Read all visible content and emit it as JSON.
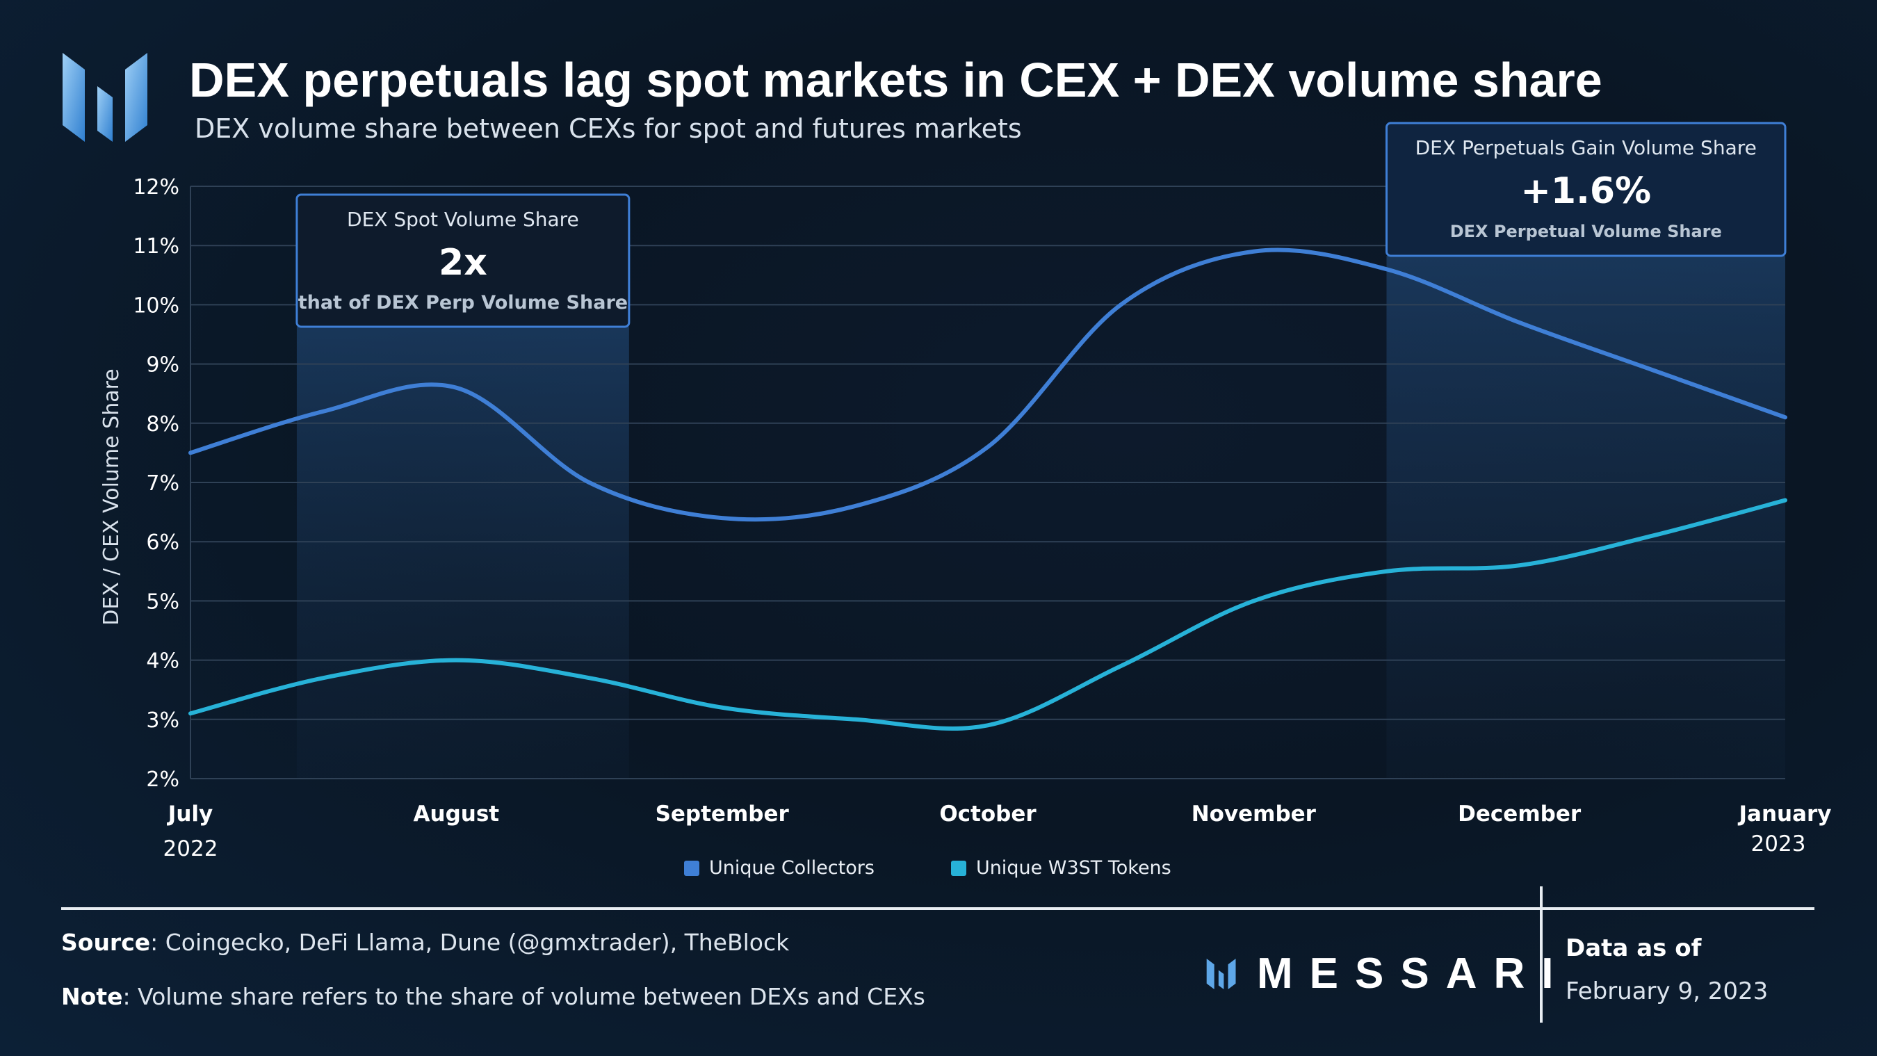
{
  "header": {
    "title": "DEX perpetuals lag spot markets in CEX + DEX volume share",
    "subtitle": "DEX volume share between CEXs for spot and futures markets"
  },
  "chart_data": {
    "type": "line",
    "ylabel": "DEX / CEX Volume Share",
    "ylim": [
      2,
      12
    ],
    "y_ticks": [
      "12%",
      "11%",
      "10%",
      "9%",
      "8%",
      "7%",
      "6%",
      "5%",
      "4%",
      "3%",
      "2%"
    ],
    "x_ticks": [
      {
        "label": "July",
        "sub": "2022"
      },
      {
        "label": "August",
        "sub": ""
      },
      {
        "label": "September",
        "sub": ""
      },
      {
        "label": "October",
        "sub": ""
      },
      {
        "label": "November",
        "sub": ""
      },
      {
        "label": "December",
        "sub": ""
      },
      {
        "label": "January",
        "sub": "2023"
      }
    ],
    "grid": true,
    "series": [
      {
        "name": "Unique Collectors",
        "color": "#3f7fd6",
        "x": [
          0,
          0.5,
          1,
          1.5,
          2,
          2.5,
          3,
          3.5,
          4,
          4.5,
          5,
          5.5,
          6
        ],
        "values": [
          7.5,
          8.2,
          8.6,
          7.0,
          6.4,
          6.6,
          7.6,
          10.0,
          10.9,
          10.6,
          9.7,
          8.9,
          8.1
        ]
      },
      {
        "name": "Unique W3ST Tokens",
        "color": "#27b2d8",
        "x": [
          0,
          0.5,
          1,
          1.5,
          2,
          2.5,
          3,
          3.5,
          4,
          4.5,
          5,
          5.5,
          6
        ],
        "values": [
          3.1,
          3.7,
          4.0,
          3.7,
          3.2,
          3.0,
          2.9,
          3.9,
          5.0,
          5.5,
          5.6,
          6.1,
          6.7
        ]
      }
    ],
    "annotations": [
      {
        "title": "DEX Spot Volume Share",
        "value": "2x",
        "caption": "that of DEX Perp Volume Share",
        "x_range": [
          0.4,
          1.65
        ]
      },
      {
        "title": "DEX Perpetuals Gain Volume Share",
        "value": "+1.6%",
        "caption": "DEX Perpetual Volume Share",
        "x_range": [
          4.5,
          6
        ]
      }
    ],
    "legend_position": "bottom-center"
  },
  "footer": {
    "source_label": "Source",
    "source_text": ": Coingecko, DeFi Llama, Dune (@gmxtrader), TheBlock",
    "note_label": "Note",
    "note_text": ": Volume share refers to the share of volume between DEXs and CEXs",
    "brand": "MESSARI",
    "as_of_label": "Data as of",
    "as_of_date": "February 9, 2023"
  },
  "colors": {
    "accent": "#3f7fd6",
    "secondary": "#27b2d8",
    "logo": "#5ea7e8"
  },
  "icons": {
    "logo": "messari-m-logo-icon"
  }
}
